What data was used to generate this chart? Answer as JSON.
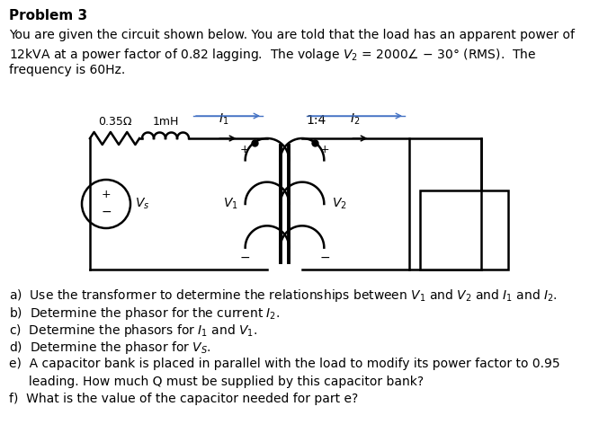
{
  "title": "Problem 3",
  "background_color": "#ffffff",
  "problem_lines": [
    "You are given the circuit shown below. You are told that the load has an apparent power of",
    "12kVA at a power factor of 0.82 lagging.  The volage $V_2$ = 2000$\\angle$ − 30° (RMS).  The",
    "frequency is 60Hz."
  ],
  "q_lines": [
    "a)  Use the transformer to determine the relationships between $V_1$ and $V_2$ and $I_1$ and $I_2$.",
    "b)  Determine the phasor for the current $I_2$.",
    "c)  Determine the phasors for $I_1$ and $V_1$.",
    "d)  Determine the phasor for $V_S$.",
    "e)  A capacitor bank is placed in parallel with the load to modify its power factor to 0.95",
    "     leading. How much Q must be supplied by this capacitor bank?",
    "f)  What is the value of the capacitor needed for part e?"
  ]
}
